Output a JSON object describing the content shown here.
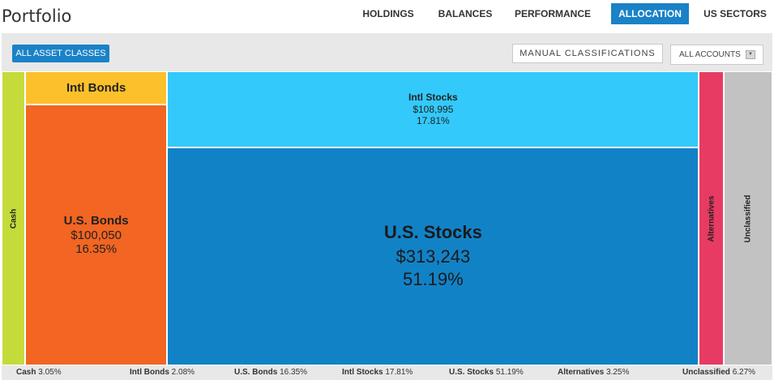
{
  "header": {
    "title": "Portfolio",
    "tabs": [
      {
        "label": "HOLDINGS",
        "active": false
      },
      {
        "label": "BALANCES",
        "active": false
      },
      {
        "label": "PERFORMANCE",
        "active": false
      },
      {
        "label": "ALLOCATION",
        "active": true
      },
      {
        "label": "US SECTORS",
        "active": false
      }
    ]
  },
  "toolbar": {
    "all_asset_classes": "ALL ASSET CLASSES",
    "manual_classifications": "MANUAL CLASSIFICATIONS",
    "accounts_select": "ALL ACCOUNTS",
    "accounts_arrow_icon": "dropdown-arrow-icon"
  },
  "colors": {
    "accent": "#1a82c7",
    "Cash": "#c5db3a",
    "Intl Bonds": "#fcc02c",
    "U.S. Bonds": "#f26522",
    "Intl Stocks": "#33c9fb",
    "U.S. Stocks": "#1282c7",
    "Alternatives": "#e73b63",
    "Unclassified": "#c2c2c2"
  },
  "chart_data": {
    "type": "treemap",
    "unit": "$",
    "series": [
      {
        "name": "Cash",
        "percent": 3.05
      },
      {
        "name": "Intl Bonds",
        "percent": 2.08
      },
      {
        "name": "U.S. Bonds",
        "value": 100050,
        "value_label": "$100,050",
        "percent": 16.35,
        "percent_label": "16.35%"
      },
      {
        "name": "Intl Stocks",
        "value": 108995,
        "value_label": "$108,995",
        "percent": 17.81,
        "percent_label": "17.81%"
      },
      {
        "name": "U.S. Stocks",
        "value": 313243,
        "value_label": "$313,243",
        "percent": 51.19,
        "percent_label": "51.19%"
      },
      {
        "name": "Alternatives",
        "percent": 3.25
      },
      {
        "name": "Unclassified",
        "percent": 6.27
      }
    ],
    "legend": [
      {
        "name": "Cash",
        "percent_label": "3.05%"
      },
      {
        "name": "Intl Bonds",
        "percent_label": "2.08%"
      },
      {
        "name": "U.S. Bonds",
        "percent_label": "16.35%"
      },
      {
        "name": "Intl Stocks",
        "percent_label": "17.81%"
      },
      {
        "name": "U.S. Stocks",
        "percent_label": "51.19%"
      },
      {
        "name": "Alternatives",
        "percent_label": "3.25%"
      },
      {
        "name": "Unclassified",
        "percent_label": "6.27%"
      }
    ],
    "legend_position": "bottom"
  }
}
